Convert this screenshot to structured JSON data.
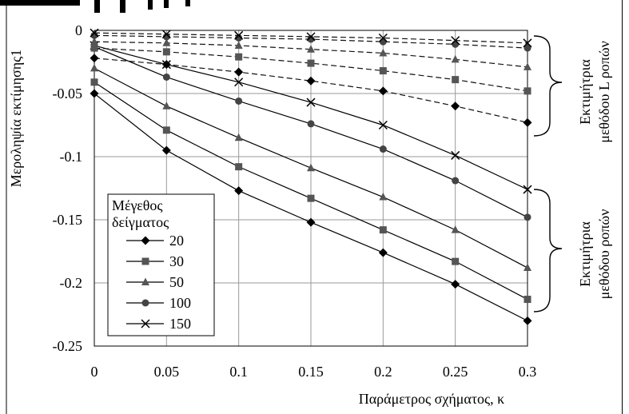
{
  "chart_data": {
    "type": "line",
    "xlabel": "Παράμετρος σχήματος, κ",
    "ylabel": "Μεροληψία εκτίμησης1",
    "x": [
      0,
      0.05,
      0.1,
      0.15,
      0.2,
      0.25,
      0.3
    ],
    "x_ticks": [
      "0",
      "0.05",
      "0.1",
      "0.15",
      "0.2",
      "0.25",
      "0.3"
    ],
    "y_ticks": [
      "0",
      "-0.05",
      "-0.1",
      "-0.15",
      "-0.2",
      "-0.25"
    ],
    "xlim": [
      0,
      0.3
    ],
    "ylim": [
      -0.25,
      0
    ],
    "grid": true,
    "legend": {
      "title_line1": "Μέγεθος",
      "title_line2": "δείγματος",
      "placement": "lower-left"
    },
    "series": [
      {
        "name": "20",
        "marker": "diamond",
        "group": "moments",
        "style": "solid",
        "values": [
          -0.05,
          -0.095,
          -0.127,
          -0.152,
          -0.176,
          -0.201,
          -0.23
        ]
      },
      {
        "name": "30",
        "marker": "square",
        "group": "moments",
        "style": "solid",
        "values": [
          -0.041,
          -0.079,
          -0.108,
          -0.133,
          -0.158,
          -0.183,
          -0.213
        ]
      },
      {
        "name": "50",
        "marker": "triangle",
        "group": "moments",
        "style": "solid",
        "values": [
          -0.03,
          -0.06,
          -0.085,
          -0.109,
          -0.132,
          -0.158,
          -0.188
        ]
      },
      {
        "name": "100",
        "marker": "circle",
        "group": "moments",
        "style": "solid",
        "values": [
          -0.013,
          -0.037,
          -0.056,
          -0.074,
          -0.094,
          -0.119,
          -0.148
        ]
      },
      {
        "name": "150",
        "marker": "x",
        "group": "moments",
        "style": "solid",
        "values": [
          -0.012,
          -0.027,
          -0.041,
          -0.057,
          -0.075,
          -0.099,
          -0.126
        ]
      },
      {
        "name": "20",
        "marker": "diamond",
        "group": "lmoments",
        "style": "dashed",
        "values": [
          -0.022,
          -0.027,
          -0.033,
          -0.04,
          -0.048,
          -0.06,
          -0.073
        ]
      },
      {
        "name": "30",
        "marker": "square",
        "group": "lmoments",
        "style": "dashed",
        "values": [
          -0.014,
          -0.017,
          -0.021,
          -0.026,
          -0.032,
          -0.039,
          -0.048
        ]
      },
      {
        "name": "50",
        "marker": "triangle",
        "group": "lmoments",
        "style": "dashed",
        "values": [
          -0.009,
          -0.01,
          -0.012,
          -0.015,
          -0.018,
          -0.023,
          -0.029
        ]
      },
      {
        "name": "100",
        "marker": "circle",
        "group": "lmoments",
        "style": "dashed",
        "values": [
          -0.004,
          -0.005,
          -0.006,
          -0.007,
          -0.009,
          -0.011,
          -0.014
        ]
      },
      {
        "name": "150",
        "marker": "x",
        "group": "lmoments",
        "style": "dashed",
        "values": [
          -0.002,
          -0.003,
          -0.004,
          -0.005,
          -0.006,
          -0.008,
          -0.01
        ]
      }
    ],
    "annotations": {
      "lmoments_line1": "Εκτιμήτρια",
      "lmoments_line2": "μεθόδου L ροπών",
      "moments_line1": "Εκτιμήτρια",
      "moments_line2": "μεθόδου ροπών"
    }
  }
}
